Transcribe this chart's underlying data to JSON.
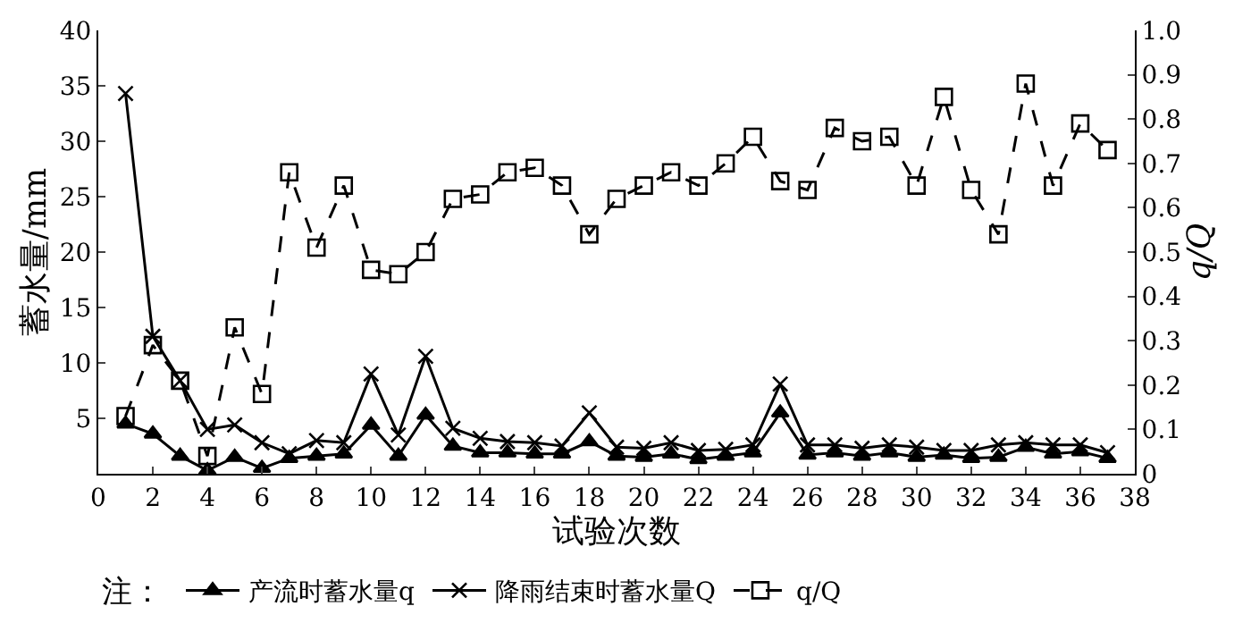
{
  "chart_data": {
    "type": "line",
    "xlabel": "试验次数",
    "ylabel": "蓄水量/mm",
    "y2label": "q/Q",
    "legend_title": "注：",
    "legend": "bottom",
    "x": [
      1,
      2,
      3,
      4,
      5,
      6,
      7,
      8,
      9,
      10,
      11,
      12,
      13,
      14,
      15,
      16,
      17,
      18,
      19,
      20,
      21,
      22,
      23,
      24,
      25,
      26,
      27,
      28,
      29,
      30,
      31,
      32,
      33,
      34,
      35,
      36,
      37
    ],
    "xlim": [
      0,
      38
    ],
    "xticks": [
      0,
      2,
      4,
      6,
      8,
      10,
      12,
      14,
      16,
      18,
      20,
      22,
      24,
      26,
      28,
      30,
      32,
      34,
      36,
      38
    ],
    "ylim": [
      0,
      40
    ],
    "yticks": [
      5,
      10,
      15,
      20,
      25,
      30,
      35,
      40
    ],
    "y2lim": [
      0,
      1
    ],
    "y2ticks": [
      {
        "value": 0,
        "label": "0"
      },
      {
        "value": 0.1,
        "label": "0.1"
      },
      {
        "value": 0.2,
        "label": "0.2"
      },
      {
        "value": 0.3,
        "label": "0.3"
      },
      {
        "value": 0.4,
        "label": "0.4"
      },
      {
        "value": 0.5,
        "label": "0.5"
      },
      {
        "value": 0.6,
        "label": "0.6"
      },
      {
        "value": 0.7,
        "label": "0.7"
      },
      {
        "value": 0.8,
        "label": "0.8"
      },
      {
        "value": 0.9,
        "label": "0.9"
      },
      {
        "value": 1,
        "label": "1.0"
      }
    ],
    "series": [
      {
        "name": "产流时蓄水量q",
        "color": "#000000",
        "marker": "triangle",
        "line_style": "solid",
        "values": [
          4.5,
          3.6,
          1.6,
          0.3,
          1.5,
          0.5,
          1.4,
          1.6,
          1.8,
          4.4,
          1.6,
          5.3,
          2.5,
          1.9,
          1.9,
          1.8,
          1.8,
          2.9,
          1.6,
          1.5,
          1.8,
          1.3,
          1.6,
          1.9,
          5.5,
          1.7,
          1.9,
          1.6,
          1.9,
          1.5,
          1.7,
          1.4,
          1.5,
          2.4,
          1.8,
          2.0,
          1.4
        ]
      },
      {
        "name": "降雨结束时蓄水量Q",
        "color": "#000000",
        "marker": "cross",
        "line_style": "solid",
        "values": [
          34.3,
          12.4,
          8.4,
          4.0,
          4.4,
          2.8,
          1.8,
          3.0,
          2.8,
          9.0,
          3.5,
          10.6,
          4.1,
          3.2,
          2.9,
          2.8,
          2.5,
          5.5,
          2.4,
          2.3,
          2.8,
          2.1,
          2.2,
          2.6,
          8.1,
          2.6,
          2.6,
          2.3,
          2.6,
          2.4,
          2.1,
          2.1,
          2.6,
          2.8,
          2.6,
          2.6,
          1.9
        ]
      },
      {
        "name": "q/Q",
        "color": "#000000",
        "marker": "square",
        "line_style": "dashed",
        "axis": "y2",
        "values": [
          0.13,
          0.29,
          0.21,
          0.04,
          0.33,
          0.18,
          0.68,
          0.51,
          0.65,
          0.46,
          0.45,
          0.5,
          0.62,
          0.63,
          0.68,
          0.69,
          0.65,
          0.54,
          0.62,
          0.65,
          0.68,
          0.65,
          0.7,
          0.76,
          0.66,
          0.64,
          0.78,
          0.75,
          0.76,
          0.65,
          0.85,
          0.64,
          0.54,
          0.88,
          0.65,
          0.79,
          0.73
        ]
      }
    ]
  }
}
